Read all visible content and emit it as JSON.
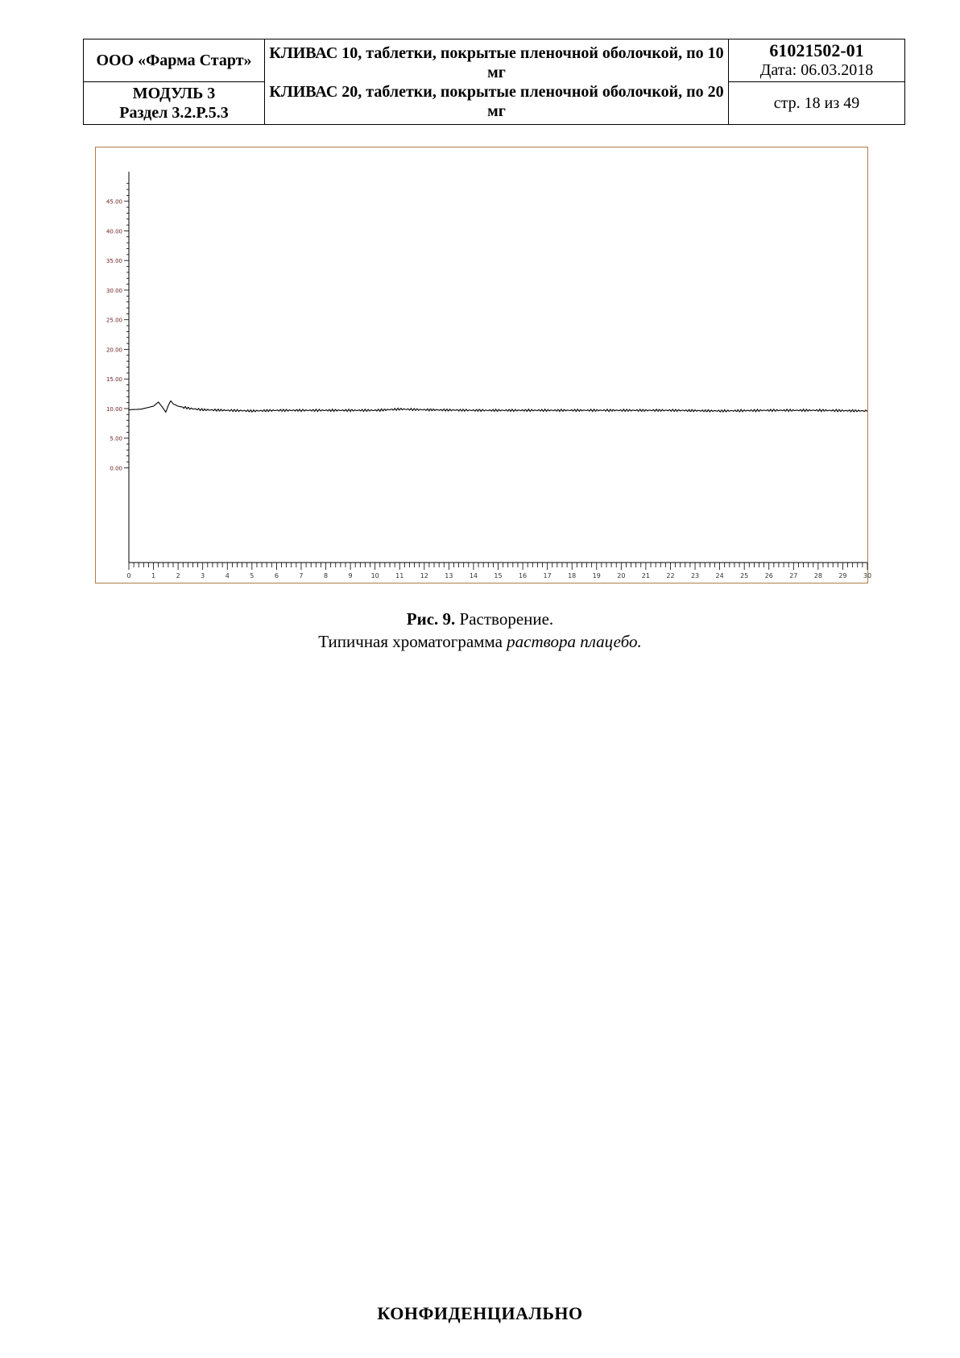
{
  "header": {
    "company": "ООО «Фарма Старт»",
    "module": "МОДУЛЬ 3",
    "section": "Раздел 3.2.P.5.3",
    "product_line1": "КЛИВАС 10, таблетки, покрытые пленочной оболочкой, по 10 мг",
    "product_line2": "КЛИВАС 20, таблетки, покрытые пленочной оболочкой, по 20 мг",
    "doc_number": "61021502-01",
    "date": "Дата: 06.03.2018",
    "page": "стр. 18 из 49"
  },
  "figure": {
    "caption_label": "Рис. 9.",
    "caption_title": " Растворение.",
    "caption_text": "Типичная хроматограмма ",
    "caption_italic": "раствора плацебо."
  },
  "chart_data": {
    "type": "line",
    "y_ticks": [
      "0.00",
      "5.00",
      "10.00",
      "15.00",
      "20.00",
      "25.00",
      "30.00",
      "35.00",
      "40.00",
      "45.00"
    ],
    "x_ticks": [
      "0",
      "1",
      "2",
      "3",
      "4",
      "5",
      "6",
      "7",
      "8",
      "9",
      "10",
      "11",
      "12",
      "13",
      "14",
      "15",
      "16",
      "17",
      "18",
      "19",
      "20",
      "21",
      "22",
      "23",
      "24",
      "25",
      "26",
      "27",
      "28",
      "29",
      "30"
    ],
    "xlim": [
      0,
      30
    ],
    "ylim": [
      -16,
      50
    ],
    "grid": false,
    "series": [
      {
        "x": [
          0,
          0.5,
          1.0,
          1.2,
          1.35,
          1.5,
          1.6,
          1.7,
          1.8,
          2.0,
          2.5,
          3,
          4,
          5,
          6,
          8,
          10,
          11,
          12,
          14,
          16,
          18,
          20,
          22,
          24,
          26,
          28,
          30
        ],
        "y": [
          9.8,
          9.9,
          10.4,
          11.1,
          10.3,
          9.4,
          10.5,
          11.3,
          10.8,
          10.4,
          10.0,
          9.8,
          9.7,
          9.6,
          9.7,
          9.7,
          9.7,
          9.9,
          9.8,
          9.7,
          9.7,
          9.7,
          9.7,
          9.7,
          9.6,
          9.7,
          9.7,
          9.6
        ]
      }
    ]
  },
  "footer": {
    "confidential": "КОНФИДЕНЦИАЛЬНО"
  }
}
